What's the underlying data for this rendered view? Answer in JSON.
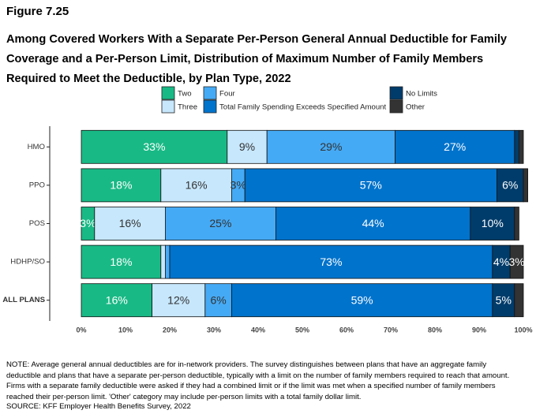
{
  "figure_label": "Figure 7.25",
  "note": "NOTE: Average general annual deductibles are for in-network providers. The survey distinguishes between plans that have an aggregate family deductible and plans that have a separate per-person deductible, typically with a limit on the number of family members required to reach that amount. Firms with a separate family deductible were asked if they had a combined limit or if the limit was met when a specified number of family members reached their per-person limit. 'Other' category may include per-person limits with a total family dollar limit.",
  "source": "SOURCE: KFF Employer Health Benefits Survey, 2022",
  "chart_data": {
    "type": "stacked_bar_horizontal",
    "title": "Among Covered Workers With a Separate Per-Person General Annual Deductible for Family Coverage and a Per-Person Limit, Distribution of Maximum Number of Family Members Required to Meet the Deductible, by Plan Type, 2022",
    "categories": [
      "HMO",
      "PPO",
      "POS",
      "HDHP/SO",
      "ALL PLANS"
    ],
    "series": [
      {
        "name": "Two",
        "color": "#19b985",
        "text_color": "#ffffff",
        "values": [
          33,
          18,
          3,
          18,
          16
        ],
        "value_labels": [
          "33%",
          "18%",
          "3%",
          "18%",
          "16%"
        ]
      },
      {
        "name": "Three",
        "color": "#c7e7fc",
        "text_color": "#333333",
        "values": [
          9,
          16,
          16,
          1,
          12
        ],
        "value_labels": [
          "9%",
          "16%",
          "16%",
          null,
          "12%"
        ]
      },
      {
        "name": "Four",
        "color": "#45aaf5",
        "text_color": "#333333",
        "values": [
          29,
          3,
          25,
          1,
          6
        ],
        "value_labels": [
          "29%",
          "3%",
          "25%",
          null,
          "6%"
        ]
      },
      {
        "name": "Total Family Spending Exceeds Specified Amount",
        "color": "#0073cc",
        "text_color": "#ffffff",
        "values": [
          27,
          57,
          44,
          73,
          59
        ],
        "value_labels": [
          "27%",
          "57%",
          "44%",
          "73%",
          "59%"
        ]
      },
      {
        "name": "No Limits",
        "color": "#003c6b",
        "text_color": "#ffffff",
        "values": [
          1,
          6,
          10,
          4,
          5
        ],
        "value_labels": [
          null,
          "6%",
          "10%",
          "4%",
          "5%"
        ]
      },
      {
        "name": "Other",
        "color": "#333333",
        "text_color": "#ffffff",
        "values": [
          1,
          1,
          1,
          3,
          2
        ],
        "value_labels": [
          null,
          null,
          null,
          "3%",
          null
        ]
      }
    ],
    "xlim": [
      0,
      100
    ],
    "xticks": [
      {
        "value": 0,
        "label": "0%"
      },
      {
        "value": 10,
        "label": "10%"
      },
      {
        "value": 20,
        "label": "20%"
      },
      {
        "value": 30,
        "label": "30%"
      },
      {
        "value": 40,
        "label": "40%"
      },
      {
        "value": 50,
        "label": "50%"
      },
      {
        "value": 60,
        "label": "60%"
      },
      {
        "value": 70,
        "label": "70%"
      },
      {
        "value": 80,
        "label": "80%"
      },
      {
        "value": 90,
        "label": "90%"
      },
      {
        "value": 100,
        "label": "100%"
      }
    ],
    "grid": false
  }
}
